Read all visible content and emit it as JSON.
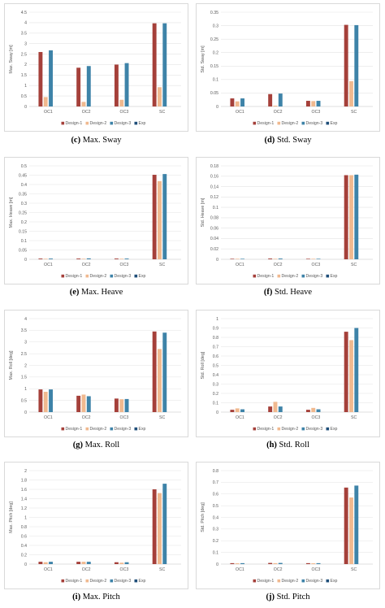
{
  "colors": {
    "Design-1": "#a5403a",
    "Design-2": "#f0b98f",
    "Design-3": "#3e83a8",
    "Exp": "#1f4e79",
    "grid": "#e3e3e3",
    "axis": "#bfbfbf"
  },
  "chart_data": [
    {
      "type": "bar",
      "caption_letter": "(c)",
      "caption_text": "Max. Sway",
      "ylabel": "Max. Sway [m]",
      "categories": [
        "OC1",
        "OC2",
        "OC3",
        "SC"
      ],
      "ylim": [
        0,
        4.5
      ],
      "yticks": [
        "0",
        "0.5",
        "1",
        "1.5",
        "2",
        "2.5",
        "3",
        "3.5",
        "4",
        "4.5"
      ],
      "series": [
        {
          "name": "Design-1",
          "values": [
            2.6,
            1.85,
            2.0,
            3.97
          ]
        },
        {
          "name": "Design-2",
          "values": [
            0.45,
            0.22,
            0.32,
            0.92
          ]
        },
        {
          "name": "Design-3",
          "values": [
            2.68,
            1.93,
            2.07,
            3.97
          ]
        },
        {
          "name": "Exp",
          "values": [
            0,
            0,
            0,
            0
          ]
        }
      ]
    },
    {
      "type": "bar",
      "caption_letter": "(d)",
      "caption_text": "Std. Sway",
      "ylabel": "Std. Sway [m]",
      "categories": [
        "OC1",
        "OC2",
        "OC3",
        "SC"
      ],
      "ylim": [
        0,
        0.35
      ],
      "yticks": [
        "0",
        "0.05",
        "0.1",
        "0.15",
        "0.2",
        "0.25",
        "0.3",
        "0.35"
      ],
      "series": [
        {
          "name": "Design-1",
          "values": [
            0.03,
            0.046,
            0.021,
            0.303
          ]
        },
        {
          "name": "Design-2",
          "values": [
            0.019,
            0.003,
            0.02,
            0.094
          ]
        },
        {
          "name": "Design-3",
          "values": [
            0.03,
            0.048,
            0.021,
            0.302
          ]
        },
        {
          "name": "Exp",
          "values": [
            0,
            0,
            0,
            0
          ]
        }
      ]
    },
    {
      "type": "bar",
      "caption_letter": "(e)",
      "caption_text": "Max. Heave",
      "ylabel": "Max. Heave [m]",
      "categories": [
        "OC1",
        "OC2",
        "OC3",
        "SC"
      ],
      "ylim": [
        0,
        0.5
      ],
      "yticks": [
        "0",
        "0.05",
        "0.1",
        "0.15",
        "0.2",
        "0.25",
        "0.3",
        "0.35",
        "0.4",
        "0.45",
        "0.5"
      ],
      "series": [
        {
          "name": "Design-1",
          "values": [
            0.004,
            0.004,
            0.004,
            0.452
          ]
        },
        {
          "name": "Design-2",
          "values": [
            0.003,
            0.003,
            0.003,
            0.418
          ]
        },
        {
          "name": "Design-3",
          "values": [
            0.004,
            0.005,
            0.004,
            0.456
          ]
        },
        {
          "name": "Exp",
          "values": [
            0,
            0,
            0,
            0
          ]
        }
      ]
    },
    {
      "type": "bar",
      "caption_letter": "(f)",
      "caption_text": "Std. Heave",
      "ylabel": "Std. Heave [m]",
      "categories": [
        "OC1",
        "OC2",
        "OC3",
        "SC"
      ],
      "ylim": [
        0,
        0.18
      ],
      "yticks": [
        "0",
        "0.02",
        "0.04",
        "0.06",
        "0.08",
        "0.1",
        "0.12",
        "0.14",
        "0.16",
        "0.18"
      ],
      "series": [
        {
          "name": "Design-1",
          "values": [
            0.001,
            0.0015,
            0.001,
            0.162
          ]
        },
        {
          "name": "Design-2",
          "values": [
            0.001,
            0.001,
            0.001,
            0.162
          ]
        },
        {
          "name": "Design-3",
          "values": [
            0.001,
            0.0015,
            0.001,
            0.163
          ]
        },
        {
          "name": "Exp",
          "values": [
            0,
            0,
            0,
            0
          ]
        }
      ]
    },
    {
      "type": "bar",
      "caption_letter": "(g)",
      "caption_text": "Max. Roll",
      "ylabel": "Max. Roll [deg]",
      "categories": [
        "OC1",
        "OC2",
        "OC3",
        "SC"
      ],
      "ylim": [
        0,
        4
      ],
      "yticks": [
        "0",
        "0.5",
        "1",
        "1.5",
        "2",
        "2.5",
        "3",
        "3.5",
        "4"
      ],
      "series": [
        {
          "name": "Design-1",
          "values": [
            0.97,
            0.7,
            0.58,
            3.45
          ]
        },
        {
          "name": "Design-2",
          "values": [
            0.87,
            0.75,
            0.55,
            2.7
          ]
        },
        {
          "name": "Design-3",
          "values": [
            0.97,
            0.68,
            0.56,
            3.4
          ]
        },
        {
          "name": "Exp",
          "values": [
            0,
            0,
            0,
            0
          ]
        }
      ]
    },
    {
      "type": "bar",
      "caption_letter": "(h)",
      "caption_text": "Std. Roll",
      "ylabel": "Std. Roll [deg]",
      "categories": [
        "OC1",
        "OC2",
        "OC3",
        "SC"
      ],
      "ylim": [
        0,
        1
      ],
      "yticks": [
        "0",
        "0.1",
        "0.2",
        "0.3",
        "0.4",
        "0.5",
        "0.6",
        "0.7",
        "0.8",
        "0.9",
        "1"
      ],
      "series": [
        {
          "name": "Design-1",
          "values": [
            0.025,
            0.06,
            0.025,
            0.86
          ]
        },
        {
          "name": "Design-2",
          "values": [
            0.04,
            0.11,
            0.045,
            0.77
          ]
        },
        {
          "name": "Design-3",
          "values": [
            0.03,
            0.06,
            0.03,
            0.9
          ]
        },
        {
          "name": "Exp",
          "values": [
            0,
            0,
            0,
            0
          ]
        }
      ]
    },
    {
      "type": "bar",
      "caption_letter": "(i)",
      "caption_text": "Max. Pitch",
      "ylabel": "Max. Pitch [deg]",
      "categories": [
        "OC1",
        "OC2",
        "OC3",
        "SC"
      ],
      "ylim": [
        0,
        2
      ],
      "yticks": [
        "0",
        "0.2",
        "0.4",
        "0.6",
        "0.8",
        "1",
        "1.2",
        "1.4",
        "1.6",
        "1.8",
        "2"
      ],
      "series": [
        {
          "name": "Design-1",
          "values": [
            0.05,
            0.05,
            0.04,
            1.6
          ]
        },
        {
          "name": "Design-2",
          "values": [
            0.04,
            0.05,
            0.03,
            1.52
          ]
        },
        {
          "name": "Design-3",
          "values": [
            0.05,
            0.05,
            0.04,
            1.72
          ]
        },
        {
          "name": "Exp",
          "values": [
            0,
            0,
            0,
            0
          ]
        }
      ]
    },
    {
      "type": "bar",
      "caption_letter": "(j)",
      "caption_text": "Std. Pitch",
      "ylabel": "Std. Pitch [deg]",
      "categories": [
        "OC1",
        "OC2",
        "OC3",
        "SC"
      ],
      "ylim": [
        0,
        0.8
      ],
      "yticks": [
        "0",
        "0.1",
        "0.2",
        "0.3",
        "0.4",
        "0.5",
        "0.6",
        "0.7",
        "0.8"
      ],
      "series": [
        {
          "name": "Design-1",
          "values": [
            0.008,
            0.01,
            0.008,
            0.655
          ]
        },
        {
          "name": "Design-2",
          "values": [
            0.007,
            0.008,
            0.007,
            0.57
          ]
        },
        {
          "name": "Design-3",
          "values": [
            0.008,
            0.01,
            0.008,
            0.672
          ]
        },
        {
          "name": "Exp",
          "values": [
            0,
            0,
            0,
            0
          ]
        }
      ]
    }
  ]
}
